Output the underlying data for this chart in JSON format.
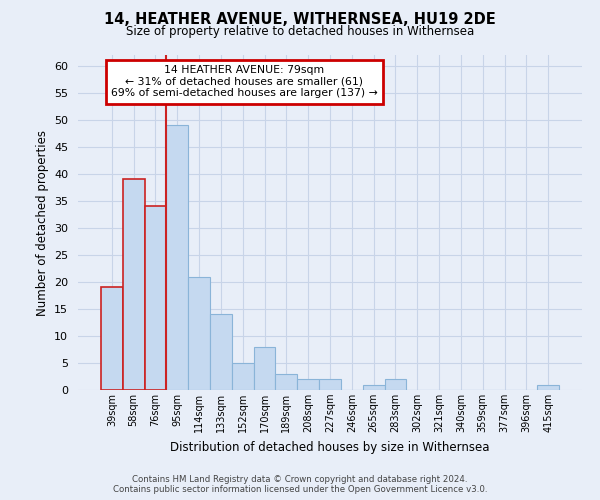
{
  "title": "14, HEATHER AVENUE, WITHERNSEA, HU19 2DE",
  "subtitle": "Size of property relative to detached houses in Withernsea",
  "xlabel": "Distribution of detached houses by size in Withernsea",
  "ylabel": "Number of detached properties",
  "categories": [
    "39sqm",
    "58sqm",
    "76sqm",
    "95sqm",
    "114sqm",
    "133sqm",
    "152sqm",
    "170sqm",
    "189sqm",
    "208sqm",
    "227sqm",
    "246sqm",
    "265sqm",
    "283sqm",
    "302sqm",
    "321sqm",
    "340sqm",
    "359sqm",
    "377sqm",
    "396sqm",
    "415sqm"
  ],
  "values": [
    19,
    39,
    34,
    49,
    21,
    14,
    5,
    8,
    3,
    2,
    2,
    0,
    1,
    2,
    0,
    0,
    0,
    0,
    0,
    0,
    1
  ],
  "bar_color": "#c5d9f0",
  "bar_edge_color": "#8ab4d8",
  "highlight_edge_color": "#cc2222",
  "highlight_indices": [
    0,
    1,
    2
  ],
  "property_line_x": 2.5,
  "annotation_title": "14 HEATHER AVENUE: 79sqm",
  "annotation_line1": "← 31% of detached houses are smaller (61)",
  "annotation_line2": "69% of semi-detached houses are larger (137) →",
  "annotation_box_color": "#ffffff",
  "annotation_box_edge": "#cc0000",
  "vline_color": "#cc2222",
  "ylim": [
    0,
    62
  ],
  "yticks": [
    0,
    5,
    10,
    15,
    20,
    25,
    30,
    35,
    40,
    45,
    50,
    55,
    60
  ],
  "grid_color": "#c8d4e8",
  "background_color": "#e8eef8",
  "plot_background": "#e8eef8",
  "footer_line1": "Contains HM Land Registry data © Crown copyright and database right 2024.",
  "footer_line2": "Contains public sector information licensed under the Open Government Licence v3.0."
}
